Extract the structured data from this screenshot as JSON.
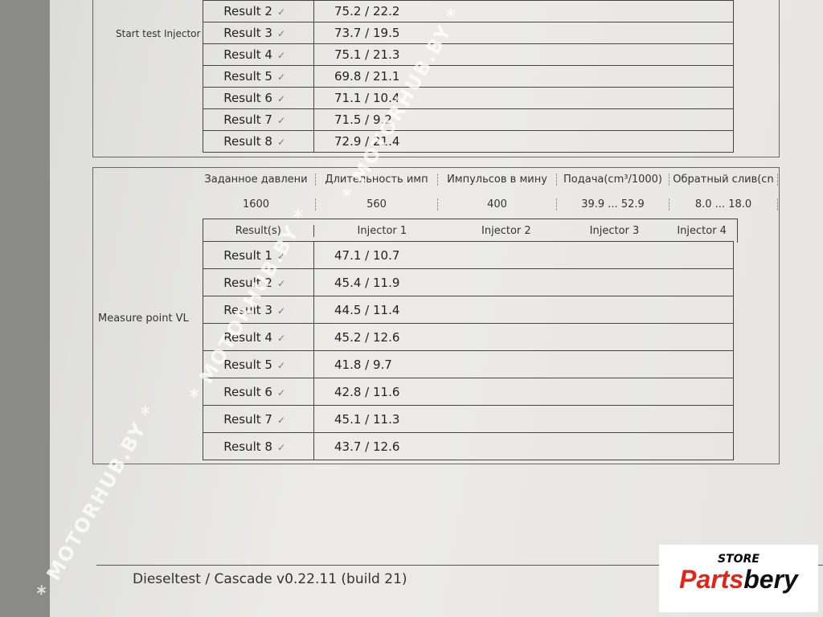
{
  "top_section": {
    "label": "Start test Injector",
    "rows": [
      {
        "result": "Result 2",
        "value": "75.2 / 22.2"
      },
      {
        "result": "Result 3",
        "value": "73.7 / 19.5"
      },
      {
        "result": "Result 4",
        "value": "75.1 / 21.3"
      },
      {
        "result": "Result 5",
        "value": "69.8 / 21.1"
      },
      {
        "result": "Result 6",
        "value": "71.1 / 10.4"
      },
      {
        "result": "Result 7",
        "value": "71.5 / 9.2"
      },
      {
        "result": "Result 8",
        "value": "72.9 / 21.4"
      }
    ]
  },
  "measure_section": {
    "label": "Measure point VL",
    "params_headers": [
      "Заданное давлени",
      "Длительность имп",
      "Импульсов в мину",
      "Подача(cm³/1000)",
      "Обратный слив(cn"
    ],
    "params_values": [
      "1600",
      "560",
      "400",
      "39.9 ... 52.9",
      "8.0 ... 18.0"
    ],
    "columns": [
      "Result(s)",
      "Injector 1",
      "Injector 2",
      "Injector 3",
      "Injector 4"
    ],
    "rows": [
      {
        "result": "Result 1",
        "value": "47.1 / 10.7"
      },
      {
        "result": "Result 2",
        "value": "45.4 / 11.9"
      },
      {
        "result": "Result 3",
        "value": "44.5 / 11.4"
      },
      {
        "result": "Result 4",
        "value": "45.2 / 12.6"
      },
      {
        "result": "Result 5",
        "value": "41.8 / 9.7"
      },
      {
        "result": "Result 6",
        "value": "42.8 / 11.6"
      },
      {
        "result": "Result 7",
        "value": "45.1 / 11.3"
      },
      {
        "result": "Result 8",
        "value": "43.7 / 12.6"
      }
    ]
  },
  "check_mark": "✓",
  "footer": "Dieseltest / Cascade v0.22.11 (build 21)",
  "watermark": "* MOTORHUB.BY *",
  "logo": {
    "store": "STORE",
    "brand_red": "Parts",
    "brand_black": "bery",
    "red": "#e0261c"
  }
}
